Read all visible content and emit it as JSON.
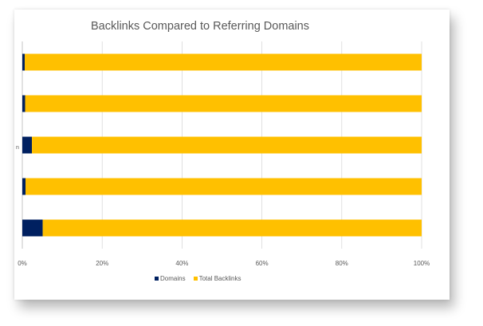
{
  "chart_data": {
    "type": "bar",
    "orientation": "horizontal",
    "stacked": "percent",
    "title": "Backlinks Compared to Referring Domains",
    "xlabel": "",
    "ylabel": "",
    "xlim": [
      0,
      100
    ],
    "x_ticks": [
      "0%",
      "20%",
      "40%",
      "60%",
      "80%",
      "100%"
    ],
    "categories": [
      "",
      "",
      "",
      "",
      ""
    ],
    "visible_category_fragment": "n",
    "series": [
      {
        "name": "Domains",
        "color": "#002060",
        "values": [
          0.6,
          0.7,
          2.4,
          0.8,
          5.1
        ]
      },
      {
        "name": "Total Backlinks",
        "color": "#FFC000",
        "values": [
          99.4,
          99.3,
          97.6,
          99.2,
          94.9
        ]
      }
    ],
    "grid": true,
    "legend_position": "bottom"
  }
}
